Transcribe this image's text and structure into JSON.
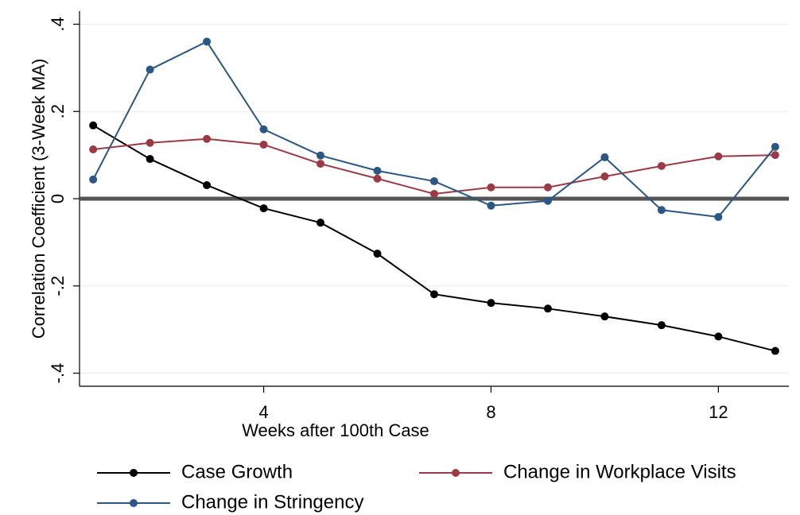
{
  "chart_data": {
    "type": "line",
    "xlabel": "Weeks after 100th Case",
    "ylabel": "Correlation Coefficient (3-Week MA)",
    "x": [
      1,
      2,
      3,
      4,
      5,
      6,
      7,
      8,
      9,
      10,
      11,
      12,
      13
    ],
    "series": [
      {
        "name": "Case Growth",
        "color": "#000000",
        "values": [
          0.168,
          0.091,
          0.031,
          -0.022,
          -0.055,
          -0.126,
          -0.219,
          -0.239,
          -0.252,
          -0.27,
          -0.29,
          -0.316,
          -0.349
        ]
      },
      {
        "name": "Change in Workplace Visits",
        "color": "#9b3a45",
        "values": [
          0.113,
          0.128,
          0.137,
          0.124,
          0.08,
          0.046,
          0.011,
          0.026,
          0.026,
          0.051,
          0.075,
          0.097,
          0.1
        ]
      },
      {
        "name": "Change in Stringency",
        "color": "#2a5783",
        "values": [
          0.044,
          0.296,
          0.36,
          0.159,
          0.099,
          0.064,
          0.04,
          -0.016,
          -0.005,
          0.095,
          -0.026,
          -0.042,
          0.119
        ]
      }
    ],
    "xlim": [
      0.76,
      13.24
    ],
    "xticks": [
      4,
      8,
      12
    ],
    "ylim": [
      -0.43,
      0.43
    ],
    "yticks": [
      {
        "value": -0.4,
        "label": "-.4"
      },
      {
        "value": -0.2,
        "label": "-.2"
      },
      0,
      {
        "value": 0.2,
        "label": ".2"
      },
      {
        "value": 0.4,
        "label": ".4"
      }
    ],
    "reference_line": 0,
    "grid": true
  }
}
